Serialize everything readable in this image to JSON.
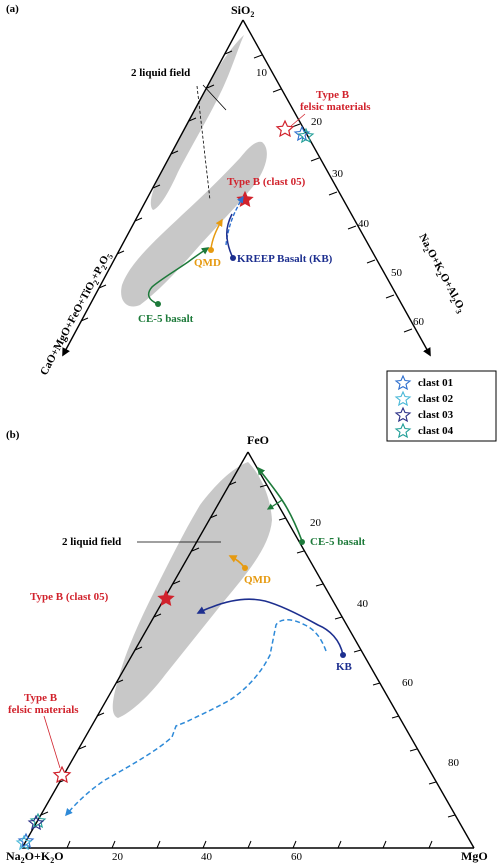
{
  "panel_a": {
    "label": "(a)",
    "apex_top": "SiO",
    "apex_top_sub": "2",
    "left_axis": [
      "CaO+MgO+FeO+TiO",
      "2",
      "+P",
      "2",
      "O",
      "5"
    ],
    "right_axis": [
      "Na",
      "2",
      "O+K",
      "2",
      "O+Al",
      "2",
      "O",
      "3"
    ],
    "right_ticks": [
      "10",
      "20",
      "30",
      "40",
      "50",
      "60"
    ],
    "two_liquid": "2 liquid field",
    "type_b_felsic": [
      "Type B",
      "felsic materials"
    ],
    "type_b_clast": "Type B (clast 05)",
    "qmd": "QMD",
    "kreep": "KREEP Basalt (KB)",
    "ce5": "CE-5 basalt"
  },
  "legend": {
    "items": [
      {
        "label": "clast 01",
        "color": "#2e6fce"
      },
      {
        "label": "clast 02",
        "color": "#49b8d8"
      },
      {
        "label": "clast 03",
        "color": "#2a2f86"
      },
      {
        "label": "clast 04",
        "color": "#1f9e97"
      }
    ]
  },
  "panel_b": {
    "label": "(b)",
    "apex_top": "FeO",
    "apex_left": [
      "Na",
      "2",
      "O+K",
      "2",
      "O"
    ],
    "apex_right": "MgO",
    "bottom_ticks": [
      "20",
      "40",
      "60"
    ],
    "right_ticks": [
      "20",
      "40",
      "60",
      "80"
    ],
    "two_liquid": "2 liquid field",
    "ce5": "CE-5 basalt",
    "qmd": "QMD",
    "type_b_clast": "Type B  (clast 05)",
    "kb": "KB",
    "type_b_felsic": [
      "Type B",
      "felsic materials"
    ]
  },
  "colors": {
    "red": "#d1222c",
    "green": "#1d7a3a",
    "orange": "#e69a10",
    "blue": "#1d2f8f",
    "dashed_blue": "#2e8ad8",
    "field_gray": "#c8c8c8"
  }
}
